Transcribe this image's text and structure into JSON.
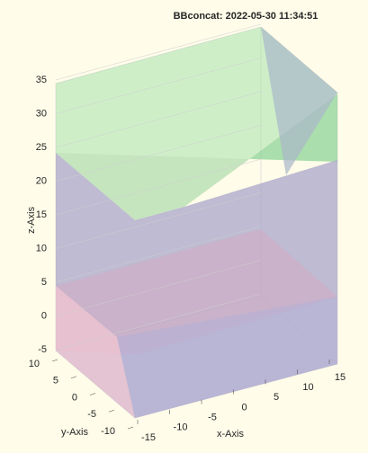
{
  "chart_data": {
    "type": "surface3d",
    "title": "BBconcat: 2022-05-30 11:34:51",
    "xlabel": "x-Axis",
    "ylabel": "y-Axis",
    "zlabel": "z-Axis",
    "xlim": [
      -15,
      15
    ],
    "xticks": [
      -15,
      -10,
      -5,
      0,
      5,
      10,
      15
    ],
    "ylim": [
      -10,
      10
    ],
    "yticks": [
      -10,
      -5,
      0,
      5,
      10
    ],
    "zlim": [
      -5,
      35
    ],
    "zticks": [
      -5,
      0,
      5,
      10,
      15,
      20,
      25,
      30,
      35
    ],
    "grid": true
  }
}
